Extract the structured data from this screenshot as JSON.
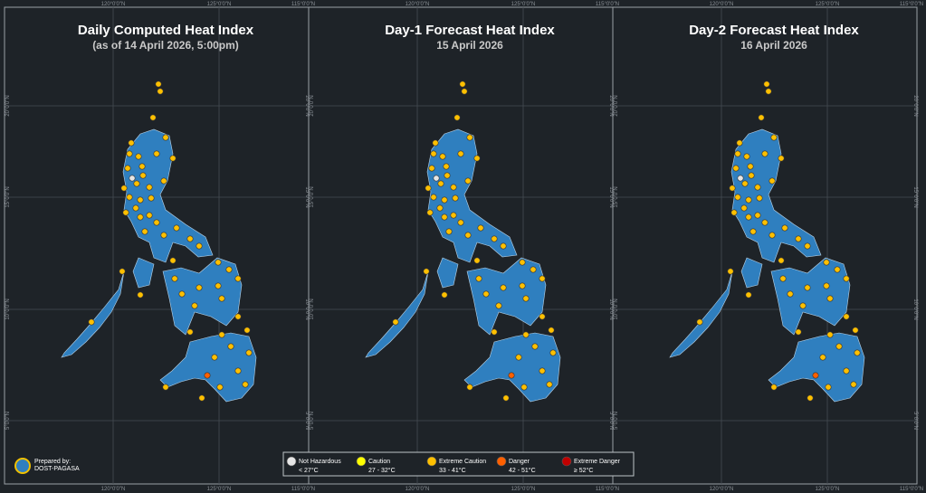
{
  "panels": [
    {
      "title": "Daily Computed Heat Index",
      "subtitle": "(as of 14 April 2026, 5:00pm)"
    },
    {
      "title": "Day-1 Forecast Heat Index",
      "subtitle": "15 April 2026"
    },
    {
      "title": "Day-2 Forecast Heat Index",
      "subtitle": "16 April 2026"
    }
  ],
  "grid_labels": {
    "lon": [
      "120°0'0\"N",
      "125°0'0\"N",
      "115°0'0\"N"
    ],
    "lat": [
      "20°0'0\"N",
      "15°0'0\"N",
      "10°0'0\"N",
      "5°0'0\"N"
    ]
  },
  "legend": [
    {
      "name": "Not Hazardous",
      "range": "< 27°C",
      "color": "#e6e6e6"
    },
    {
      "name": "Caution",
      "range": "27 - 32°C",
      "color": "#ffff00"
    },
    {
      "name": "Extreme Caution",
      "range": "33 - 41°C",
      "color": "#ffc000"
    },
    {
      "name": "Danger",
      "range": "42 - 51°C",
      "color": "#ff6000"
    },
    {
      "name": "Extreme Danger",
      "range": "≥ 52°C",
      "color": "#c00000"
    }
  ],
  "credit": {
    "line1": "Prepared by:",
    "line2": "DOST-PAGASA"
  }
}
